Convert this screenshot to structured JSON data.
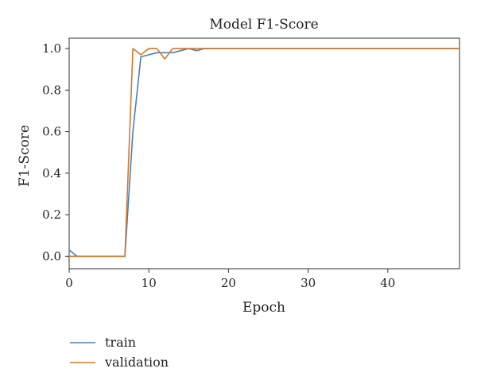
{
  "chart_data": {
    "type": "line",
    "title": "Model F1-Score",
    "xlabel": "Epoch",
    "ylabel": "F1-Score",
    "xlim": [
      0,
      49
    ],
    "ylim": [
      -0.06,
      1.05
    ],
    "x_ticks": [
      0,
      10,
      20,
      30,
      40
    ],
    "y_ticks": [
      0.0,
      0.2,
      0.4,
      0.6,
      0.8,
      1.0
    ],
    "x_tick_labels": [
      "0",
      "10",
      "20",
      "30",
      "40"
    ],
    "y_tick_labels": [
      "0.0",
      "0.2",
      "0.4",
      "0.6",
      "0.8",
      "1.0"
    ],
    "grid": false,
    "legend_position": "below-left",
    "series": [
      {
        "name": "train",
        "color": "#4a7fb8",
        "x": [
          0,
          1,
          2,
          3,
          4,
          5,
          6,
          7,
          8,
          9,
          10,
          11,
          12,
          13,
          14,
          15,
          16,
          17,
          18,
          19,
          20,
          21,
          22,
          23,
          24,
          25,
          26,
          27,
          28,
          29,
          30,
          31,
          32,
          33,
          34,
          35,
          36,
          37,
          38,
          39,
          40,
          41,
          42,
          43,
          44,
          45,
          46,
          47,
          48,
          49
        ],
        "y": [
          0.03,
          0.0,
          0.0,
          0.0,
          0.0,
          0.0,
          0.0,
          0.0,
          0.6,
          0.96,
          0.97,
          0.98,
          0.98,
          0.98,
          0.99,
          1.0,
          0.99,
          1.0,
          1.0,
          1.0,
          1.0,
          1.0,
          1.0,
          1.0,
          1.0,
          1.0,
          1.0,
          1.0,
          1.0,
          1.0,
          1.0,
          1.0,
          1.0,
          1.0,
          1.0,
          1.0,
          1.0,
          1.0,
          1.0,
          1.0,
          1.0,
          1.0,
          1.0,
          1.0,
          1.0,
          1.0,
          1.0,
          1.0,
          1.0,
          1.0
        ]
      },
      {
        "name": "validation",
        "color": "#d4782a",
        "x": [
          0,
          1,
          2,
          3,
          4,
          5,
          6,
          7,
          8,
          9,
          10,
          11,
          12,
          13,
          14,
          15,
          16,
          17,
          18,
          19,
          20,
          21,
          22,
          23,
          24,
          25,
          26,
          27,
          28,
          29,
          30,
          31,
          32,
          33,
          34,
          35,
          36,
          37,
          38,
          39,
          40,
          41,
          42,
          43,
          44,
          45,
          46,
          47,
          48,
          49
        ],
        "y": [
          0.0,
          0.0,
          0.0,
          0.0,
          0.0,
          0.0,
          0.0,
          0.0,
          1.0,
          0.97,
          1.0,
          1.0,
          0.95,
          1.0,
          1.0,
          1.0,
          1.0,
          1.0,
          1.0,
          1.0,
          1.0,
          1.0,
          1.0,
          1.0,
          1.0,
          1.0,
          1.0,
          1.0,
          1.0,
          1.0,
          1.0,
          1.0,
          1.0,
          1.0,
          1.0,
          1.0,
          1.0,
          1.0,
          1.0,
          1.0,
          1.0,
          1.0,
          1.0,
          1.0,
          1.0,
          1.0,
          1.0,
          1.0,
          1.0,
          1.0
        ]
      }
    ]
  }
}
